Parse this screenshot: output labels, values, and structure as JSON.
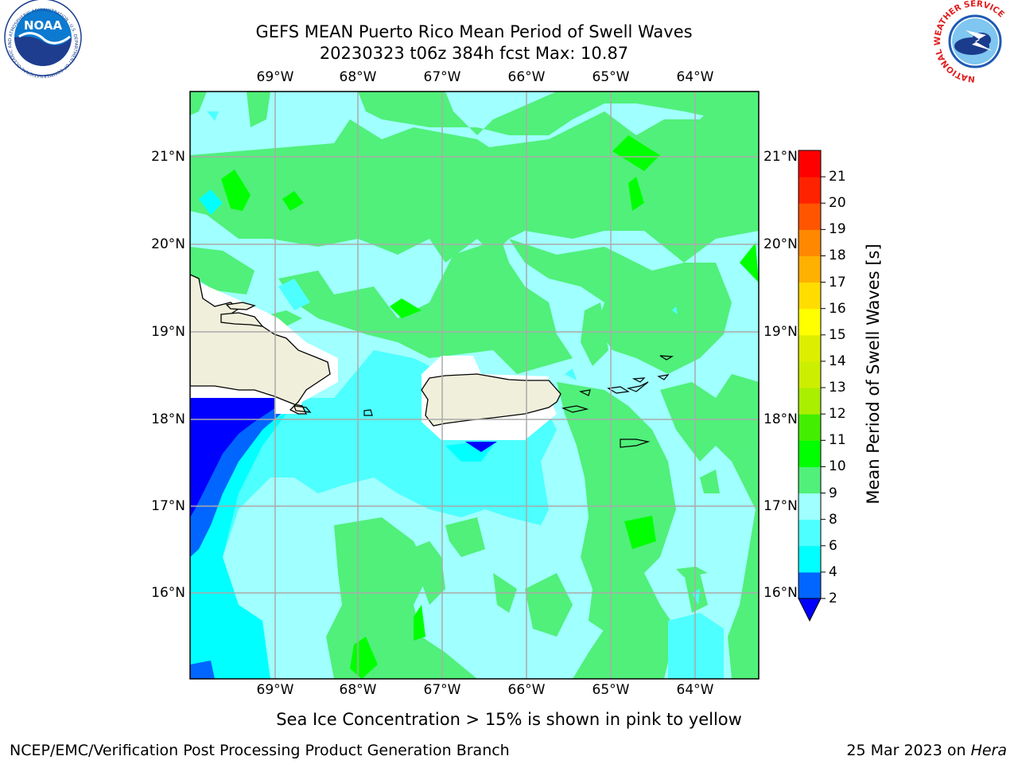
{
  "header": {
    "title_line1": "GEFS MEAN Puerto Rico Mean Period of Swell Waves",
    "title_line2": "20230323 t06z 384h fcst   Max: 10.87"
  },
  "logos": {
    "noaa_text": "NOAA",
    "noaa_ring": "NATIONAL OCEANIC AND ATMOSPHERIC ADMINISTRATION · U.S. DEPARTMENT OF COMMERCE",
    "nws_ring": "NATIONAL WEATHER SERVICE"
  },
  "map": {
    "lon_labels": [
      "69°W",
      "68°W",
      "67°W",
      "66°W",
      "65°W",
      "64°W"
    ],
    "lat_labels": [
      "21°N",
      "20°N",
      "19°N",
      "18°N",
      "17°N",
      "16°N"
    ],
    "grid": true,
    "projection_note": "lat/lon grid every 1 degree"
  },
  "colorbar": {
    "label": "Mean Period of Swell Waves [s]",
    "ticks": [
      "2",
      "4",
      "6",
      "8",
      "9",
      "10",
      "11",
      "12",
      "13",
      "14",
      "15",
      "16",
      "17",
      "18",
      "19",
      "20",
      "21"
    ],
    "colors": [
      "#0000ff",
      "#0066ff",
      "#00ffff",
      "#4dffff",
      "#a0ffff",
      "#50f07a",
      "#00ff00",
      "#44ee00",
      "#aaee00",
      "#ccee00",
      "#ddee00",
      "#ffff00",
      "#ffdd00",
      "#ffb000",
      "#ff8800",
      "#ff5500",
      "#ff2200",
      "#ff0000"
    ],
    "extend": "min"
  },
  "colors": {
    "band_2_4": "#0000ff",
    "band_4_6": "#0066ff",
    "band_6_8": "#00ffff",
    "band_8_9": "#4dffff",
    "band_9_10": "#a0ffff",
    "band_10_11": "#50f07a",
    "band_11_12": "#00ff00",
    "land": "#efefdb",
    "grid": "#aaaaaa"
  },
  "footer": {
    "caption": "Sea Ice Concentration > 15% is shown in pink to yellow",
    "producer": "NCEP/EMC/Verification Post Processing Product Generation Branch",
    "date": "25 Mar 2023 on ",
    "machine": "Hera"
  }
}
